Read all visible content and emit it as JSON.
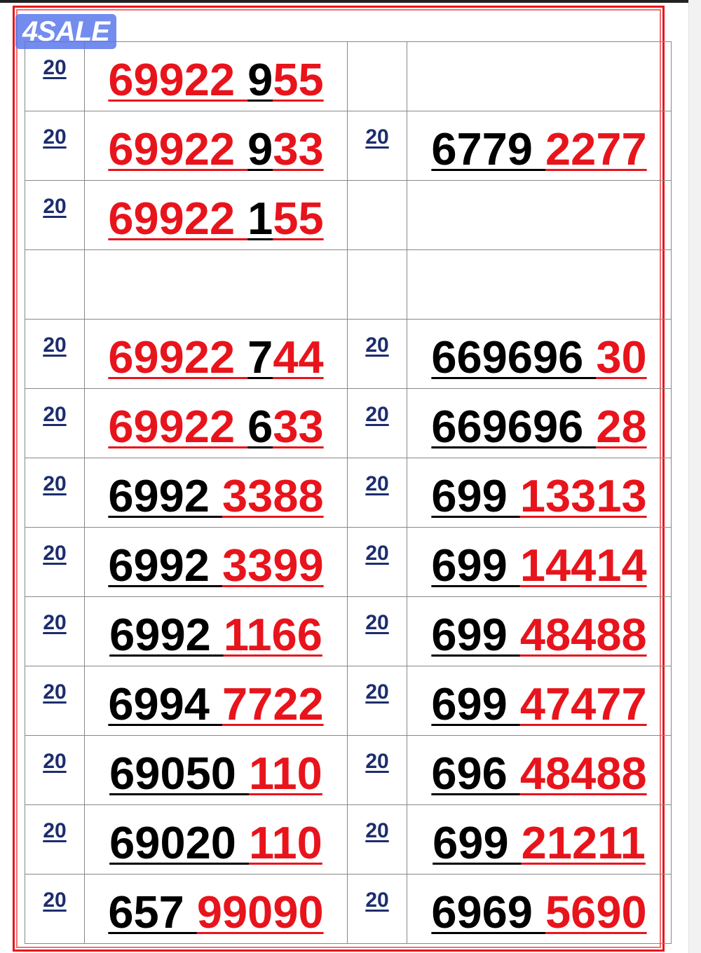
{
  "logo_text": "4SALE",
  "colors": {
    "red": "#e8141c",
    "black": "#000000",
    "prefix_blue": "#1c2d6e",
    "logo_bg": "#5a78eb"
  },
  "rows": [
    {
      "left": {
        "prefix": "20",
        "segments": [
          {
            "text": "69922 ",
            "color": "red"
          },
          {
            "text": "9",
            "color": "black"
          },
          {
            "text": "55",
            "color": "red"
          }
        ]
      },
      "right": null
    },
    {
      "left": {
        "prefix": "20",
        "segments": [
          {
            "text": "69922 ",
            "color": "red"
          },
          {
            "text": "9",
            "color": "black"
          },
          {
            "text": "33",
            "color": "red"
          }
        ]
      },
      "right": {
        "prefix": "20",
        "segments": [
          {
            "text": "6779 ",
            "color": "black"
          },
          {
            "text": "2277",
            "color": "red"
          }
        ]
      }
    },
    {
      "left": {
        "prefix": "20",
        "segments": [
          {
            "text": "69922 ",
            "color": "red"
          },
          {
            "text": "1",
            "color": "black"
          },
          {
            "text": "55",
            "color": "red"
          }
        ]
      },
      "right": null
    },
    {
      "left": null,
      "right": null
    },
    {
      "left": {
        "prefix": "20",
        "segments": [
          {
            "text": "69922 ",
            "color": "red"
          },
          {
            "text": "7",
            "color": "black"
          },
          {
            "text": "44",
            "color": "red"
          }
        ]
      },
      "right": {
        "prefix": "20",
        "segments": [
          {
            "text": "669696 ",
            "color": "black"
          },
          {
            "text": "30",
            "color": "red"
          }
        ]
      }
    },
    {
      "left": {
        "prefix": "20",
        "segments": [
          {
            "text": "69922 ",
            "color": "red"
          },
          {
            "text": "6",
            "color": "black"
          },
          {
            "text": "33",
            "color": "red"
          }
        ]
      },
      "right": {
        "prefix": "20",
        "segments": [
          {
            "text": "669696 ",
            "color": "black"
          },
          {
            "text": "28",
            "color": "red"
          }
        ]
      }
    },
    {
      "left": {
        "prefix": "20",
        "segments": [
          {
            "text": "6992 ",
            "color": "black"
          },
          {
            "text": "3388",
            "color": "red"
          }
        ]
      },
      "right": {
        "prefix": "20",
        "segments": [
          {
            "text": "699 ",
            "color": "black"
          },
          {
            "text": "13313",
            "color": "red"
          }
        ]
      }
    },
    {
      "left": {
        "prefix": "20",
        "segments": [
          {
            "text": "6992 ",
            "color": "black"
          },
          {
            "text": "3399",
            "color": "red"
          }
        ]
      },
      "right": {
        "prefix": "20",
        "segments": [
          {
            "text": "699 ",
            "color": "black"
          },
          {
            "text": "14414",
            "color": "red"
          }
        ]
      }
    },
    {
      "left": {
        "prefix": "20",
        "segments": [
          {
            "text": "6992 ",
            "color": "black"
          },
          {
            "text": "1166",
            "color": "red"
          }
        ]
      },
      "right": {
        "prefix": "20",
        "segments": [
          {
            "text": "699 ",
            "color": "black"
          },
          {
            "text": "48488",
            "color": "red"
          }
        ]
      }
    },
    {
      "left": {
        "prefix": "20",
        "segments": [
          {
            "text": "6994 ",
            "color": "black"
          },
          {
            "text": "7722",
            "color": "red"
          }
        ]
      },
      "right": {
        "prefix": "20",
        "segments": [
          {
            "text": "699 ",
            "color": "black"
          },
          {
            "text": "47477",
            "color": "red"
          }
        ]
      }
    },
    {
      "left": {
        "prefix": "20",
        "segments": [
          {
            "text": "69050 ",
            "color": "black"
          },
          {
            "text": "110",
            "color": "red"
          }
        ]
      },
      "right": {
        "prefix": "20",
        "segments": [
          {
            "text": "696 ",
            "color": "black"
          },
          {
            "text": "48488",
            "color": "red"
          }
        ]
      }
    },
    {
      "left": {
        "prefix": "20",
        "segments": [
          {
            "text": "69020 ",
            "color": "black"
          },
          {
            "text": "110",
            "color": "red"
          }
        ]
      },
      "right": {
        "prefix": "20",
        "segments": [
          {
            "text": "699 ",
            "color": "black"
          },
          {
            "text": "21211",
            "color": "red"
          }
        ]
      }
    },
    {
      "left": {
        "prefix": "20",
        "segments": [
          {
            "text": "657 ",
            "color": "black"
          },
          {
            "text": "99090",
            "color": "red"
          }
        ]
      },
      "right": {
        "prefix": "20",
        "segments": [
          {
            "text": "6969 ",
            "color": "black"
          },
          {
            "text": "5690",
            "color": "red"
          }
        ]
      }
    }
  ]
}
